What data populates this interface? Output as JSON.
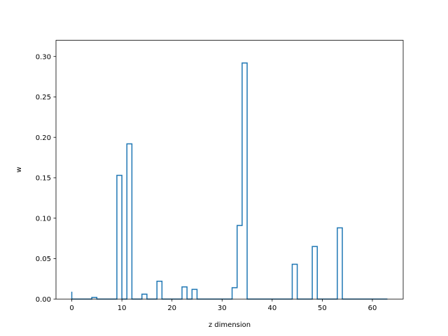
{
  "chart_data": {
    "type": "step",
    "title": "",
    "xlabel": "z dimension",
    "ylabel": "w",
    "xlim": [
      -3.15,
      66.15
    ],
    "ylim": [
      0,
      0.32
    ],
    "xticks": [
      0,
      10,
      20,
      30,
      40,
      50,
      60
    ],
    "xtick_labels": [
      "0",
      "10",
      "20",
      "30",
      "40",
      "50",
      "60"
    ],
    "yticks": [
      0.0,
      0.05,
      0.1,
      0.15,
      0.2,
      0.25,
      0.3
    ],
    "ytick_labels": [
      "0.00",
      "0.05",
      "0.10",
      "0.15",
      "0.20",
      "0.25",
      "0.30"
    ],
    "grid": false,
    "legend": "none",
    "series": [
      {
        "color": "#1f77b4",
        "x": [
          0,
          1,
          2,
          3,
          4,
          5,
          6,
          7,
          8,
          9,
          10,
          11,
          12,
          13,
          14,
          15,
          16,
          17,
          18,
          19,
          20,
          21,
          22,
          23,
          24,
          25,
          26,
          27,
          28,
          29,
          30,
          31,
          32,
          33,
          34,
          35,
          36,
          37,
          38,
          39,
          40,
          41,
          42,
          43,
          44,
          45,
          46,
          47,
          48,
          49,
          50,
          51,
          52,
          53,
          54,
          55,
          56,
          57,
          58,
          59,
          60,
          61,
          62,
          63
        ],
        "values": [
          0.009,
          0,
          0,
          0,
          0,
          0.002,
          0,
          0,
          0,
          0,
          0.153,
          0,
          0.192,
          0,
          0,
          0.006,
          0,
          0,
          0.022,
          0,
          0,
          0,
          0,
          0.015,
          0,
          0.012,
          0,
          0,
          0,
          0,
          0,
          0,
          0,
          0.014,
          0.091,
          0.292,
          0,
          0,
          0,
          0,
          0,
          0,
          0,
          0,
          0,
          0.043,
          0,
          0,
          0,
          0.065,
          0,
          0,
          0,
          0,
          0.088,
          0,
          0,
          0,
          0,
          0,
          0,
          0,
          0,
          0
        ]
      }
    ]
  }
}
